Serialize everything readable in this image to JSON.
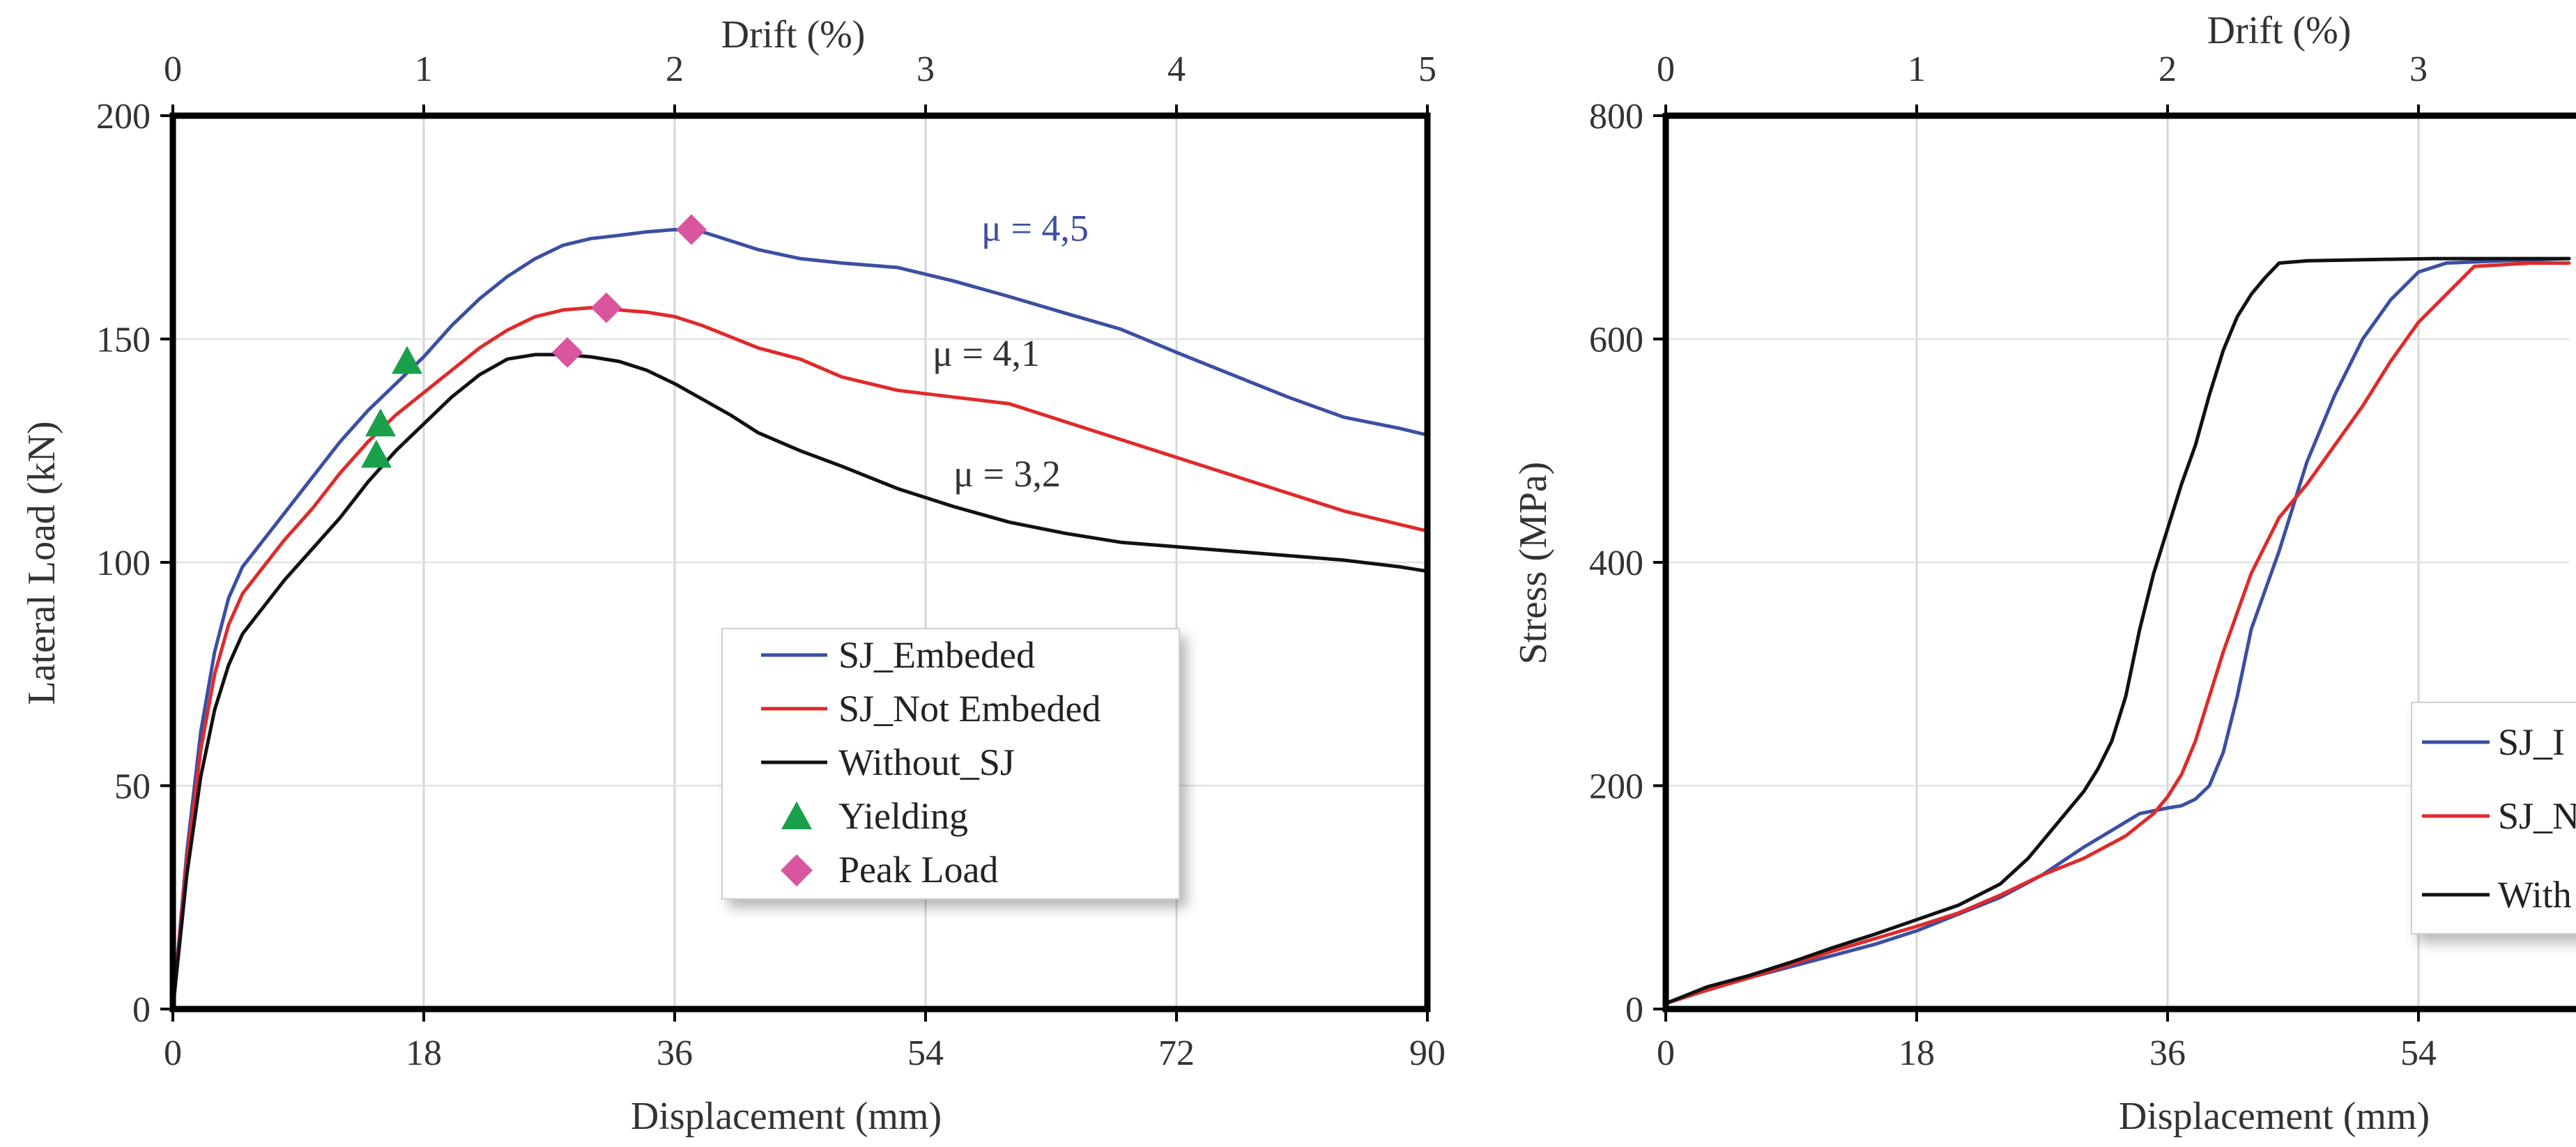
{
  "chart_data": [
    {
      "type": "line",
      "title": "",
      "xlabel": "Displacement (mm)",
      "ylabel": "Lateral Load (kN)",
      "x2label": "Drift (%)",
      "xlim": [
        0,
        90
      ],
      "ylim": [
        0,
        200
      ],
      "x_ticks": [
        "0",
        "18",
        "36",
        "54",
        "72",
        "90"
      ],
      "y_ticks": [
        "0",
        "50",
        "100",
        "150",
        "200"
      ],
      "x2_ticks": [
        "0",
        "1",
        "2",
        "3",
        "4",
        "5"
      ],
      "grid": "vertical",
      "legend_position": "center-right",
      "legend": [
        "SJ_Embeded",
        "SJ_Not Embeded",
        "Without_SJ",
        "Yielding",
        "Peak Load"
      ],
      "series": [
        {
          "name": "SJ_Embeded",
          "color": "#3b4fa3",
          "x": [
            0,
            1,
            2,
            3,
            4,
            5,
            6,
            8,
            10,
            12,
            14,
            16,
            18,
            20,
            22,
            24,
            26,
            28,
            30,
            32,
            34,
            36,
            38,
            40,
            42,
            45,
            48,
            52,
            56,
            60,
            64,
            68,
            72,
            76,
            80,
            84,
            88,
            90
          ],
          "y": [
            0,
            35,
            62,
            80,
            92,
            99,
            103,
            111,
            119,
            127,
            134,
            140,
            146,
            153,
            159,
            164,
            168,
            171,
            172.5,
            173.2,
            174,
            174.5,
            174,
            172,
            170,
            168,
            167,
            166,
            163,
            159.5,
            155.8,
            152.2,
            147,
            142,
            137,
            132.5,
            130,
            128.5
          ]
        },
        {
          "name": "SJ_Not Embeded",
          "color": "#e02a2a",
          "x": [
            0,
            1,
            2,
            3,
            4,
            5,
            6,
            8,
            10,
            12,
            14,
            16,
            18,
            20,
            22,
            24,
            26,
            28,
            30,
            32,
            34,
            36,
            38,
            40,
            42,
            45,
            48,
            52,
            56,
            60,
            64,
            68,
            72,
            76,
            80,
            84,
            88,
            90
          ],
          "y": [
            0,
            33,
            58,
            75,
            86,
            93,
            97,
            105,
            112,
            120,
            127,
            133,
            138,
            143,
            148,
            152,
            155,
            156.5,
            157,
            156.5,
            156,
            155,
            153,
            150.5,
            148,
            145.5,
            141.5,
            138.5,
            137,
            135.5,
            131.5,
            127.5,
            123.5,
            119.5,
            115.5,
            111.5,
            108.5,
            107
          ]
        },
        {
          "name": "Without_SJ",
          "color": "#111111",
          "x": [
            0,
            1,
            2,
            3,
            4,
            5,
            6,
            8,
            10,
            12,
            14,
            16,
            18,
            20,
            22,
            24,
            26,
            28,
            30,
            32,
            34,
            36,
            38,
            40,
            42,
            45,
            48,
            52,
            56,
            60,
            64,
            68,
            72,
            76,
            80,
            84,
            88,
            90
          ],
          "y": [
            0,
            30,
            52,
            67,
            77,
            84,
            88,
            96,
            103,
            110,
            118,
            125,
            131,
            137,
            142,
            145.5,
            146.5,
            146.5,
            146,
            145,
            143,
            140,
            136.5,
            133,
            129,
            125,
            121.5,
            116.5,
            112.5,
            109,
            106.5,
            104.5,
            103.5,
            102.5,
            101.5,
            100.5,
            99,
            98
          ]
        }
      ],
      "markers": [
        {
          "name": "Yielding",
          "symbol": "triangle",
          "color": "#1aa04a",
          "points": [
            [
              16.8,
              145
            ],
            [
              14.9,
              131
            ],
            [
              14.6,
              124
            ]
          ]
        },
        {
          "name": "Peak Load",
          "symbol": "diamond",
          "color": "#d9559e",
          "points": [
            [
              37.2,
              174.5
            ],
            [
              31.1,
              157
            ],
            [
              28.3,
              147
            ]
          ]
        }
      ],
      "annotations": [
        {
          "text": "μ = 4,5",
          "x": 58,
          "y": 172,
          "color": "#3b4fa3"
        },
        {
          "text": "μ = 4,1",
          "x": 54.5,
          "y": 144,
          "color": "#333333"
        },
        {
          "text": "μ = 3,2",
          "x": 56,
          "y": 117,
          "color": "#333333"
        }
      ]
    },
    {
      "type": "line",
      "title": "",
      "xlabel": "Displacement (mm)",
      "ylabel": "Stress (MPa)",
      "x2label": "Drift (%)",
      "xlim": [
        0,
        64.8
      ],
      "ylim": [
        0,
        800
      ],
      "x_ticks": [
        "0",
        "18",
        "36",
        "54"
      ],
      "y_ticks": [
        "0",
        "200",
        "400",
        "600",
        "800"
      ],
      "x2_ticks": [
        "0",
        "1",
        "2",
        "3"
      ],
      "grid": "vertical",
      "legend_position": "right (clipped)",
      "legend": [
        "SJ_I",
        "SJ_N",
        "With"
      ],
      "series": [
        {
          "name": "SJ_I",
          "color": "#3b4fa3",
          "x": [
            0,
            3,
            6,
            9,
            12,
            15,
            18,
            21,
            24,
            27,
            30,
            32,
            34,
            36,
            37,
            38,
            39,
            40,
            41,
            42,
            44,
            46,
            48,
            50,
            52,
            54,
            56,
            60,
            64.8
          ],
          "y": [
            5,
            18,
            28,
            38,
            48,
            58,
            70,
            85,
            100,
            120,
            145,
            160,
            175,
            180,
            182,
            188,
            200,
            230,
            280,
            340,
            410,
            490,
            550,
            600,
            635,
            660,
            668,
            670,
            672
          ]
        },
        {
          "name": "SJ_N",
          "color": "#e02a2a",
          "x": [
            0,
            3,
            6,
            9,
            12,
            15,
            18,
            21,
            24,
            27,
            30,
            33,
            35,
            36,
            37,
            38,
            39,
            40,
            42,
            44,
            46,
            48,
            50,
            52,
            54,
            56,
            58,
            62,
            64.8
          ],
          "y": [
            5,
            17,
            28,
            40,
            52,
            63,
            74,
            86,
            102,
            120,
            135,
            155,
            175,
            190,
            210,
            240,
            280,
            320,
            390,
            440,
            470,
            505,
            540,
            580,
            615,
            640,
            665,
            668,
            668
          ]
        },
        {
          "name": "With",
          "color": "#111111",
          "x": [
            0,
            3,
            6,
            9,
            12,
            15,
            18,
            21,
            24,
            26,
            28,
            30,
            31,
            32,
            33,
            34,
            35,
            36,
            37,
            38,
            39,
            40,
            41,
            42,
            43,
            44,
            46,
            50,
            55,
            60,
            64.8
          ],
          "y": [
            5,
            20,
            30,
            42,
            55,
            67,
            80,
            93,
            112,
            135,
            165,
            195,
            215,
            240,
            280,
            340,
            390,
            430,
            470,
            505,
            550,
            590,
            620,
            640,
            655,
            668,
            670,
            671,
            672,
            672,
            672
          ]
        }
      ]
    }
  ]
}
